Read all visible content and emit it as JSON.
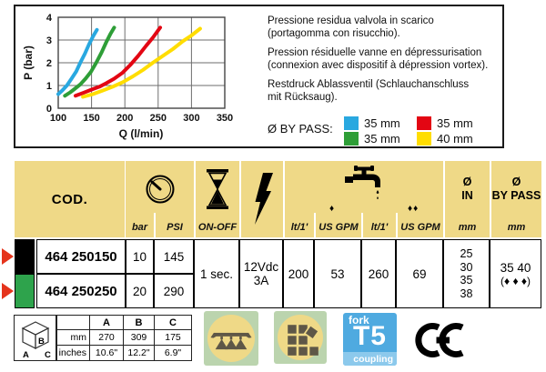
{
  "colors": {
    "header_bg": "#EFD987",
    "badge_bg": "#BBD4AE",
    "badge_circle": "#EFD987",
    "badge_glyph": "#5E5747",
    "t5_blue": "#4FAAE0",
    "t5_band": "#8CC9EC",
    "arrow_red": "#E5341C"
  },
  "top_panel": {
    "descriptions": [
      {
        "line1": "Pressione residua valvola in scarico",
        "line2": "(portagomma con risucchio)."
      },
      {
        "line1": "Pression résiduelle vanne en dépressurisation",
        "line2": "(connexion avec dispositif à dépression vortex)."
      },
      {
        "line1": "Restdruck Ablassventil (Schlauchanschluss",
        "line2": "mit Rücksaug)."
      }
    ],
    "legend": {
      "label": "Ø BY PASS:",
      "items": [
        {
          "color": "#29A8E0",
          "label": "35 mm"
        },
        {
          "color": "#E30613",
          "label": "35 mm"
        },
        {
          "color": "#2E9E37",
          "label": "35 mm"
        },
        {
          "color": "#FFDD00",
          "label": "40 mm"
        }
      ]
    }
  },
  "chart_data": {
    "type": "line",
    "title": "",
    "xlabel": "Q  (l/min)",
    "ylabel": "P (bar)",
    "xlim": [
      100,
      350
    ],
    "ylim": [
      0,
      4
    ],
    "x_ticks": [
      100,
      150,
      200,
      250,
      300,
      350
    ],
    "y_ticks": [
      0,
      1,
      2,
      3,
      4
    ],
    "grid": true,
    "legend_position": "none",
    "series": [
      {
        "name": "by-pass 35 mm (blue)",
        "color": "#29A8E0",
        "points": [
          [
            100,
            0.62
          ],
          [
            106,
            0.78
          ],
          [
            113,
            1.0
          ],
          [
            120,
            1.3
          ],
          [
            127,
            1.62
          ],
          [
            133,
            2.0
          ],
          [
            140,
            2.4
          ],
          [
            146,
            2.8
          ],
          [
            152,
            3.15
          ],
          [
            158,
            3.45
          ]
        ]
      },
      {
        "name": "by-pass 35 mm (green)",
        "color": "#2E9E37",
        "points": [
          [
            110,
            0.55
          ],
          [
            118,
            0.7
          ],
          [
            126,
            0.88
          ],
          [
            133,
            1.05
          ],
          [
            141,
            1.3
          ],
          [
            149,
            1.6
          ],
          [
            157,
            2.0
          ],
          [
            165,
            2.45
          ],
          [
            172,
            2.9
          ],
          [
            178,
            3.25
          ],
          [
            184,
            3.55
          ]
        ]
      },
      {
        "name": "by-pass 35 mm (red)",
        "color": "#E30613",
        "points": [
          [
            126,
            0.55
          ],
          [
            138,
            0.68
          ],
          [
            150,
            0.82
          ],
          [
            162,
            0.95
          ],
          [
            172,
            1.1
          ],
          [
            184,
            1.3
          ],
          [
            196,
            1.55
          ],
          [
            208,
            1.9
          ],
          [
            220,
            2.3
          ],
          [
            232,
            2.75
          ],
          [
            242,
            3.1
          ],
          [
            253,
            3.55
          ]
        ]
      },
      {
        "name": "by-pass 40 mm (yellow)",
        "color": "#FFDD00",
        "points": [
          [
            137,
            0.5
          ],
          [
            152,
            0.62
          ],
          [
            167,
            0.78
          ],
          [
            182,
            0.95
          ],
          [
            197,
            1.15
          ],
          [
            212,
            1.4
          ],
          [
            227,
            1.68
          ],
          [
            242,
            2.0
          ],
          [
            257,
            2.3
          ],
          [
            272,
            2.6
          ],
          [
            287,
            2.95
          ],
          [
            300,
            3.2
          ],
          [
            313,
            3.5
          ]
        ]
      }
    ]
  },
  "table": {
    "header": {
      "cod": "COD.",
      "bar": "bar",
      "psi": "PSI",
      "on_off": "ON-OFF",
      "lt1": "lt/1'",
      "gpm1": "US GPM",
      "lt2": "lt/1'",
      "gpm2": "US GPM",
      "marker1": "♦",
      "marker2": "♦♦",
      "d_in_line1": "Ø",
      "d_in_line2": "IN",
      "bypass_line1": "Ø",
      "bypass_line2": "BY PASS",
      "mm_in": "mm",
      "mm_bypass": "mm"
    },
    "rows": [
      {
        "code": "464 250150",
        "bar": "10",
        "psi": "145",
        "color": "#000000"
      },
      {
        "code": "464 250250",
        "bar": "20",
        "psi": "290",
        "color": "#2EA34C"
      }
    ],
    "shared": {
      "on_off": "1 sec.",
      "power_line1": "12Vdc",
      "power_line2": "3A",
      "flow1_lt": "200",
      "flow1_gpm": "53",
      "flow2_lt": "260",
      "flow2_gpm": "69",
      "d_in": [
        "25",
        "30",
        "35",
        "38"
      ],
      "bypass_line1": "35 40",
      "bypass_line2": "(♦ ♦ ♦)"
    }
  },
  "dimensions": {
    "cube_labels": {
      "a": "A",
      "b": "B",
      "c": "C"
    },
    "col_headers": [
      "A",
      "B",
      "C"
    ],
    "rows": [
      {
        "label": "mm",
        "values": [
          "270",
          "309",
          "175"
        ]
      },
      {
        "label": "inches",
        "values": [
          "10.6\"",
          "12.2\"",
          "6.9\""
        ]
      }
    ]
  },
  "badges": {
    "t5": {
      "top": "fork",
      "main": "T5",
      "bottom": "coupling"
    },
    "ce": "CE"
  }
}
